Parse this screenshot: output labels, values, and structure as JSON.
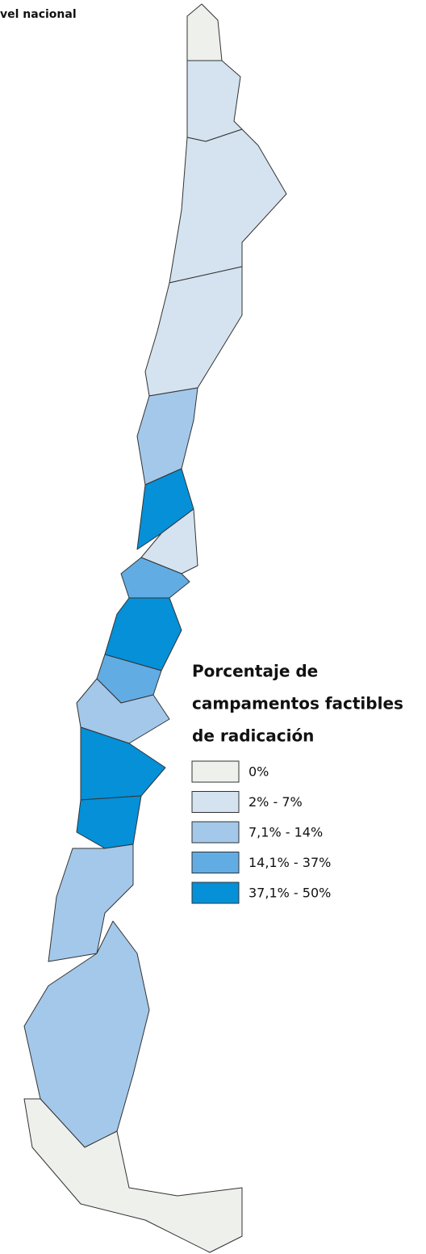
{
  "header": {
    "title": "vel nacional"
  },
  "legend": {
    "title_lines": [
      "Porcentaje de",
      "campamentos factibles",
      "de radicación"
    ],
    "items": [
      {
        "label": "0%",
        "color": "#eef0ec"
      },
      {
        "label": "2% - 7%",
        "color": "#d4e3ef"
      },
      {
        "label": "7,1% - 14%",
        "color": "#a3c8ea"
      },
      {
        "label": "14,1% - 37%",
        "color": "#62ace4"
      },
      {
        "label": "37,1% - 50%",
        "color": "#0590d8"
      }
    ]
  }
}
